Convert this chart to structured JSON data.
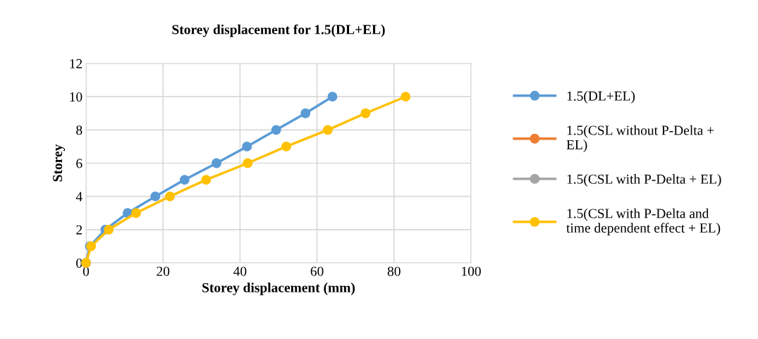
{
  "chart_data": {
    "type": "line",
    "title": "Storey displacement for 1.5(DL+EL)",
    "xlabel": "Storey displacement (mm)",
    "ylabel": "Storey",
    "xlim": [
      0,
      100
    ],
    "xticks": [
      0,
      20,
      40,
      60,
      80,
      100
    ],
    "ylim": [
      0,
      12
    ],
    "yticks": [
      0,
      2,
      4,
      6,
      8,
      10,
      12
    ],
    "grid": true,
    "legend": "right",
    "marker": "circle",
    "line_style": "solid",
    "series": [
      {
        "name": "1.5(DL+EL)",
        "color": "#5b9bd5",
        "x": [
          0,
          1,
          5,
          10.8,
          18,
          25.6,
          33.9,
          41.8,
          49.4,
          57,
          64
        ],
        "values": [
          0,
          1,
          2,
          3,
          4,
          5,
          6,
          7,
          8,
          9,
          10
        ]
      },
      {
        "name": "1.5(CSL without P-Delta +\nEL)",
        "color": "#ed7d31",
        "x": [
          null,
          null,
          null,
          null,
          null,
          null,
          null,
          null,
          null,
          null,
          null
        ],
        "values": [
          null,
          null,
          null,
          null,
          null,
          null,
          null,
          null,
          null,
          null,
          null
        ]
      },
      {
        "name": "1.5(CSL with P-Delta + EL)",
        "color": "#a5a5a5",
        "x": [
          null,
          null,
          null,
          null,
          null,
          null,
          null,
          null,
          null,
          null,
          null
        ],
        "values": [
          null,
          null,
          null,
          null,
          null,
          null,
          null,
          null,
          null,
          null,
          null
        ]
      },
      {
        "name": "1.5(CSL with P-Delta and\ntime dependent effect + EL)",
        "color": "#ffc000",
        "x": [
          0,
          1.3,
          5.9,
          13,
          21.8,
          31.2,
          42,
          52,
          62.8,
          72.6,
          83
        ],
        "values": [
          0,
          1,
          2,
          3,
          4,
          5,
          6,
          7,
          8,
          9,
          10
        ]
      }
    ]
  }
}
